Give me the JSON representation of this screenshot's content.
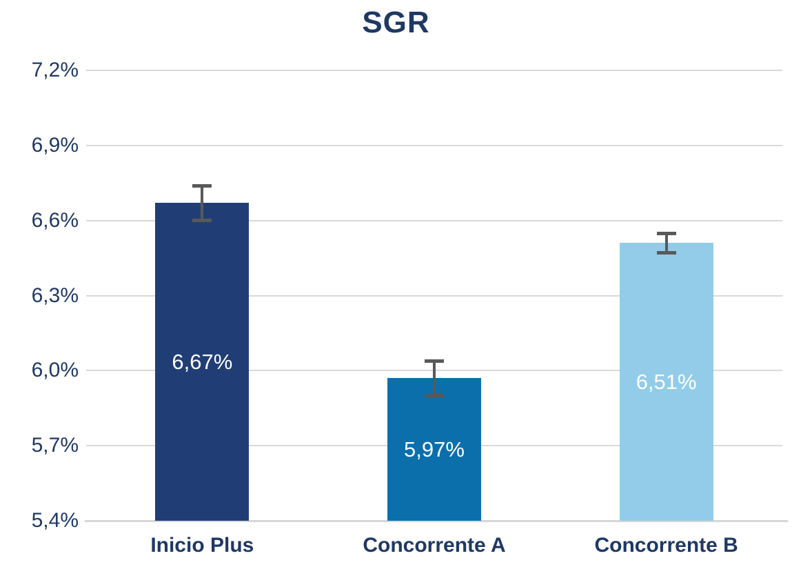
{
  "chart_data": {
    "type": "bar",
    "title": "SGR",
    "categories": [
      "Inicio Plus",
      "Concorrente A",
      "Concorrente B"
    ],
    "values": [
      6.67,
      5.97,
      6.51
    ],
    "value_labels": [
      "6,67%",
      "5,97%",
      "6,51%"
    ],
    "error_bars": [
      0.07,
      0.07,
      0.04
    ],
    "bar_colors": [
      "#203E75",
      "#0B6FAC",
      "#92CCE8"
    ],
    "value_label_color": "#FFFFFF",
    "yticks": [
      {
        "value": 7.2,
        "label": "7,2%"
      },
      {
        "value": 6.9,
        "label": "6,9%"
      },
      {
        "value": 6.6,
        "label": "6,6%"
      },
      {
        "value": 6.3,
        "label": "6,3%"
      },
      {
        "value": 6.0,
        "label": "6,0%"
      },
      {
        "value": 5.7,
        "label": "5,7%"
      },
      {
        "value": 5.4,
        "label": "5,4%"
      }
    ],
    "ylim": [
      5.4,
      7.2
    ],
    "xlabel": "",
    "ylabel": "",
    "grid": true,
    "legend_position": "none",
    "colors": {
      "title_text": "#1F3864",
      "axis_text": "#1F3864",
      "gridline": "#D9D9D9",
      "axis_line": "#D6D6D6",
      "error_bar": "#595959",
      "background": "#FFFFFF"
    }
  }
}
